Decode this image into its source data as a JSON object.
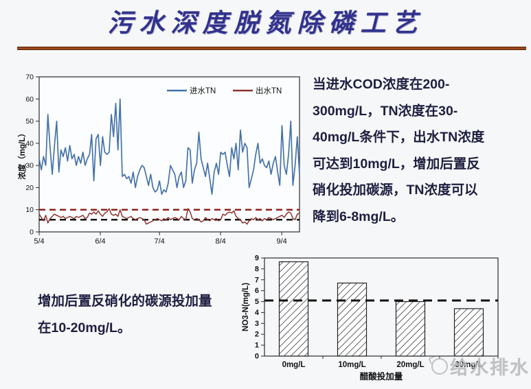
{
  "title": {
    "text": "污水深度脱氮除磷工艺"
  },
  "right_paragraph": {
    "lines": [
      "当进水COD浓度在200-",
      "300mg/L，TN浓度在30-",
      "40mg/L条件下，出水TN浓度",
      "可达到10mg/L，增加后置反",
      "硝化投加碳源，TN浓度可以",
      "降到6-8mg/L。"
    ]
  },
  "bottom_left_paragraph": {
    "lines": [
      "增加后置反硝化的碳源投加量",
      "在10-20mg/L。"
    ]
  },
  "watermark": {
    "logo_icon": "water-drop-circle-icon",
    "text": "给水排水"
  },
  "colors": {
    "title_navy": "#32328c",
    "body_text": "#1e1e3f",
    "rule_brown": "#9c4a1c",
    "influent_blue": "#4472a8",
    "effluent_dark_red": "#8c3330",
    "reference_red": "#8b1511",
    "reference_black": "#111111",
    "watermark_gray": "#b7b8ba"
  },
  "chart_data": [
    {
      "id": "tn-line",
      "type": "line",
      "title": "",
      "ylabel": "浓度（mg/L）",
      "ylim": [
        0,
        70
      ],
      "yticks": [
        0,
        10,
        20,
        30,
        40,
        50,
        60,
        70
      ],
      "xticklabels": [
        "5/4",
        "6/4",
        "7/4",
        "8/4",
        "9/4"
      ],
      "xtick_positions_days": [
        0,
        31,
        61,
        92,
        123
      ],
      "x_range_days": [
        0,
        132
      ],
      "grid": false,
      "legend_position": "top-inside",
      "reference_lines": [
        {
          "y": 10,
          "color": "#8b1511",
          "style": "dashed"
        },
        {
          "y": 5.5,
          "color": "#111111",
          "style": "dashed"
        }
      ],
      "series": [
        {
          "name": "进水TN",
          "key": "influent-tn",
          "color": "#4472a8",
          "width": 1.7,
          "values": [
            33,
            28,
            34,
            30,
            53,
            38,
            26,
            39,
            50,
            27,
            37,
            34,
            38,
            32,
            39,
            33,
            35,
            30,
            34,
            31,
            36,
            30,
            33,
            35,
            44,
            23,
            42,
            44,
            30,
            43,
            36,
            35,
            36,
            53,
            43,
            58,
            37,
            60,
            25,
            26,
            24,
            25,
            22,
            27,
            20,
            25,
            28,
            30,
            29,
            25,
            21,
            26,
            20,
            18,
            19,
            23,
            17,
            19,
            18,
            22,
            30,
            28,
            26,
            20,
            25,
            27,
            20,
            23,
            38,
            37,
            22,
            28,
            31,
            45,
            33,
            29,
            25,
            31,
            24,
            17,
            27,
            31,
            26,
            36,
            35,
            36,
            30,
            25,
            38,
            33,
            40,
            28,
            46,
            36,
            40,
            38,
            20,
            24,
            28,
            35,
            40,
            31,
            33,
            30,
            29,
            32,
            26,
            31,
            34,
            27,
            21,
            48,
            30,
            26,
            35,
            50,
            21,
            30,
            43,
            26
          ]
        },
        {
          "name": "出水TN",
          "key": "effluent-tn",
          "color": "#8c3330",
          "width": 1.5,
          "values": [
            8,
            6.5,
            5,
            7.5,
            4,
            6,
            7,
            8,
            7.5,
            7,
            6.5,
            7,
            6,
            6.5,
            7,
            6.5,
            6,
            7,
            6.5,
            7,
            7.5,
            6,
            6.5,
            8.5,
            8,
            9,
            8,
            9.5,
            8,
            7,
            8.5,
            9,
            10.5,
            8,
            7.5,
            8,
            7,
            10,
            7,
            6.5,
            6,
            6.5,
            7,
            6,
            5.5,
            6,
            6.5,
            6,
            5.5,
            3.5,
            4,
            4.5,
            5,
            5.5,
            6,
            5.5,
            5,
            6,
            5.5,
            6.5,
            5.5,
            6,
            6.5,
            6,
            5.5,
            7,
            6,
            5.5,
            10.5,
            9,
            6,
            5.5,
            6,
            5.5,
            4.5,
            5,
            6.5,
            5.5,
            5,
            6,
            5.5,
            6,
            5,
            5.5,
            8,
            7.5,
            8.5,
            9,
            8.5,
            9.5,
            7,
            6,
            5.5,
            4,
            4.5,
            3.5,
            5,
            6,
            5.5,
            6.5,
            5.5,
            6,
            5,
            6,
            5.5,
            6.5,
            6,
            5.5,
            6,
            6.5,
            7,
            7.5,
            6.5,
            8,
            9,
            8.5,
            6,
            5.5,
            8,
            8.5
          ]
        }
      ]
    },
    {
      "id": "no3-bar",
      "type": "bar",
      "categories": [
        "0mg/L",
        "10mg/L",
        "20mg/L",
        "30mg/L"
      ],
      "values": [
        8.65,
        6.7,
        5.0,
        4.35
      ],
      "title": "",
      "xlabel": "醋酸投加量",
      "ylabel": "NO3-N(mg/L)",
      "ylim": [
        0,
        9
      ],
      "yticks": [
        0,
        1,
        2,
        3,
        4,
        5,
        6,
        7,
        8,
        9
      ],
      "grid": false,
      "bar_style": "diagonal-hatch",
      "reference_line": {
        "y": 5.1,
        "color": "#111111",
        "style": "dashed"
      }
    }
  ]
}
